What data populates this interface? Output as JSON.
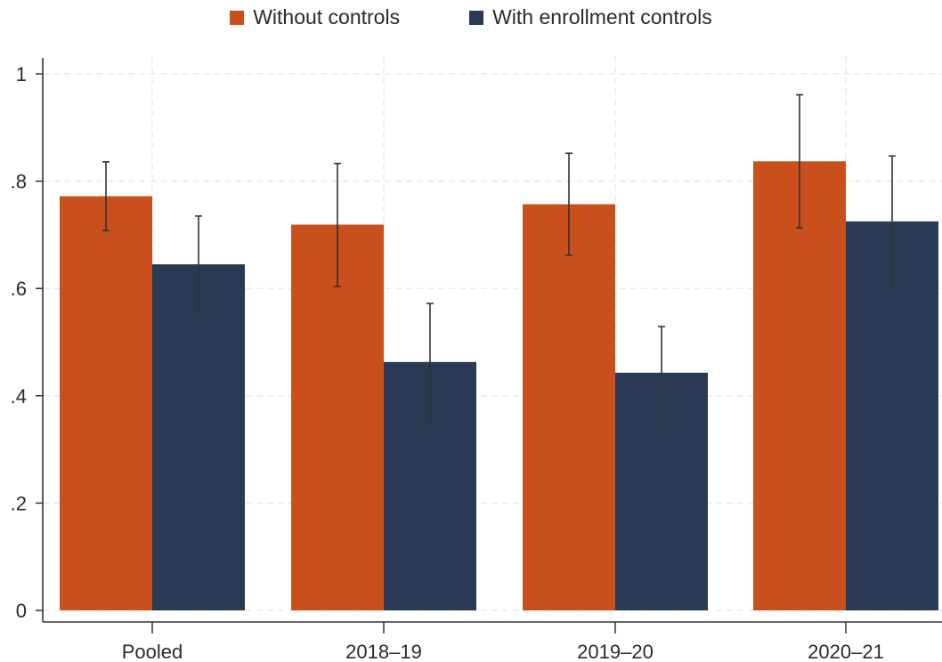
{
  "chart_data": {
    "type": "bar",
    "categories": [
      "Pooled",
      "2018–19",
      "2019–20",
      "2020–21"
    ],
    "series": [
      {
        "name": "Without controls",
        "color": "#c9501c",
        "values": [
          0.772,
          0.719,
          0.757,
          0.837
        ],
        "ci_low": [
          0.708,
          0.604,
          0.662,
          0.713
        ],
        "ci_high": [
          0.836,
          0.833,
          0.852,
          0.961
        ]
      },
      {
        "name": "With enrollment controls",
        "color": "#2a3a54",
        "values": [
          0.645,
          0.463,
          0.443,
          0.725
        ],
        "ci_low": [
          0.556,
          0.355,
          0.357,
          0.602
        ],
        "ci_high": [
          0.735,
          0.572,
          0.529,
          0.847
        ]
      }
    ],
    "y_ticks": [
      {
        "value": 0,
        "label": "0"
      },
      {
        "value": 0.2,
        "label": ".2"
      },
      {
        "value": 0.4,
        "label": ".4"
      },
      {
        "value": 0.6,
        "label": ".6"
      },
      {
        "value": 0.8,
        "label": ".8"
      },
      {
        "value": 1.0,
        "label": "1"
      }
    ],
    "ylim": [
      0,
      1
    ],
    "grid": true,
    "legend": "top-center",
    "title": "",
    "xlabel": "",
    "ylabel": ""
  }
}
